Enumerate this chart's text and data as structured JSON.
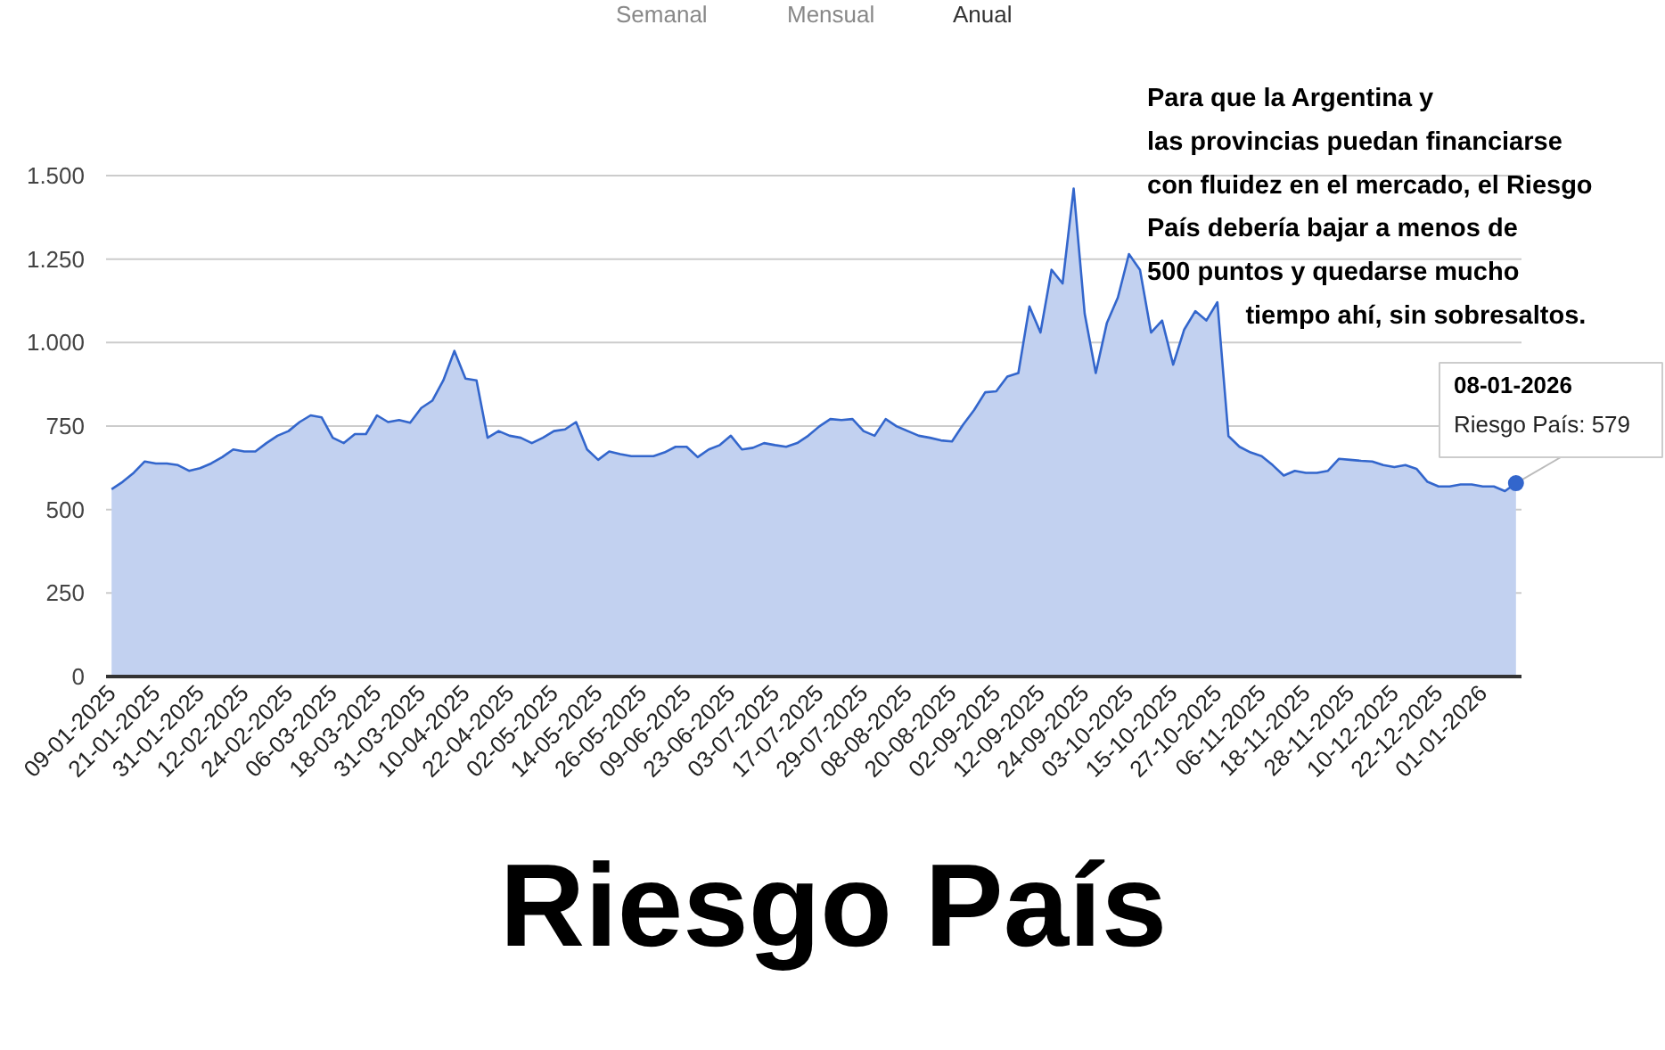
{
  "chart_data": {
    "type": "area",
    "title": "Riesgo País",
    "categories": [
      "09-01-2025",
      null,
      null,
      null,
      "21-01-2025",
      null,
      null,
      null,
      "31-01-2025",
      null,
      null,
      null,
      "12-02-2025",
      null,
      null,
      null,
      "24-02-2025",
      null,
      null,
      null,
      "06-03-2025",
      null,
      null,
      null,
      "18-03-2025",
      null,
      null,
      null,
      "31-03-2025",
      null,
      null,
      null,
      "10-04-2025",
      null,
      null,
      null,
      "22-04-2025",
      null,
      null,
      null,
      "02-05-2025",
      null,
      null,
      null,
      "14-05-2025",
      null,
      null,
      null,
      "26-05-2025",
      null,
      null,
      null,
      "09-06-2025",
      null,
      null,
      null,
      "23-06-2025",
      null,
      null,
      null,
      "03-07-2025",
      null,
      null,
      null,
      "17-07-2025",
      null,
      null,
      null,
      "29-07-2025",
      null,
      null,
      null,
      "08-08-2025",
      null,
      null,
      null,
      "20-08-2025",
      null,
      null,
      null,
      "02-09-2025",
      null,
      null,
      null,
      "12-09-2025",
      null,
      null,
      null,
      "24-09-2025",
      null,
      null,
      null,
      "03-10-2025",
      null,
      null,
      null,
      "15-10-2025",
      null,
      null,
      null,
      "27-10-2025",
      null,
      null,
      null,
      "06-11-2025",
      null,
      null,
      null,
      "18-11-2025",
      null,
      null,
      null,
      "28-11-2025",
      null,
      null,
      null,
      "10-12-2025",
      null,
      null,
      null,
      "22-12-2025",
      null,
      null,
      null,
      "01-01-2026",
      null,
      null,
      null
    ],
    "series": [
      {
        "color": "#3366cc",
        "values": [
          561,
          583,
          610,
          644,
          638,
          638,
          633,
          616,
          624,
          638,
          657,
          680,
          674,
          674,
          699,
          721,
          735,
          762,
          782,
          776,
          715,
          699,
          726,
          726,
          782,
          762,
          768,
          760,
          804,
          826,
          887,
          975,
          892,
          887,
          715,
          735,
          721,
          715,
          699,
          715,
          735,
          740,
          762,
          680,
          649,
          674,
          666,
          660,
          660,
          660,
          671,
          688,
          688,
          657,
          680,
          693,
          721,
          680,
          685,
          699,
          693,
          688,
          699,
          721,
          749,
          771,
          768,
          771,
          735,
          721,
          771,
          749,
          735,
          721,
          715,
          707,
          704,
          754,
          798,
          851,
          854,
          898,
          909,
          1108,
          1030,
          1218,
          1177,
          1461,
          1086,
          909,
          1058,
          1135,
          1265,
          1218,
          1030,
          1066,
          934,
          1039,
          1094,
          1066,
          1121,
          720,
          688,
          671,
          660,
          633,
          602,
          616,
          610,
          610,
          616,
          652,
          649,
          646,
          644,
          633,
          627,
          633,
          622,
          583,
          569,
          569,
          575,
          575,
          569,
          569,
          555,
          579
        ]
      }
    ],
    "ylim": [
      0,
      1500
    ],
    "yticks": [
      0,
      250,
      500,
      750,
      {
        "value": 1000,
        "label": "1.000"
      },
      {
        "value": 1250,
        "label": "1.250"
      },
      {
        "value": 1500,
        "label": "1.500"
      }
    ],
    "grid": "y",
    "annotations": [
      "Semanal",
      "Mensual",
      "Anual",
      "Para que la Argentina y\nlas provincias puedan financiarse\ncon fluidez en el mercado, el Riesgo\nPaís debería bajar a menos de\n500 puntos y quedarse mucho\n            tiempo ahí, sin sobresaltos.",
      "08-01-2026\nRiesgo País: 579"
    ]
  }
}
